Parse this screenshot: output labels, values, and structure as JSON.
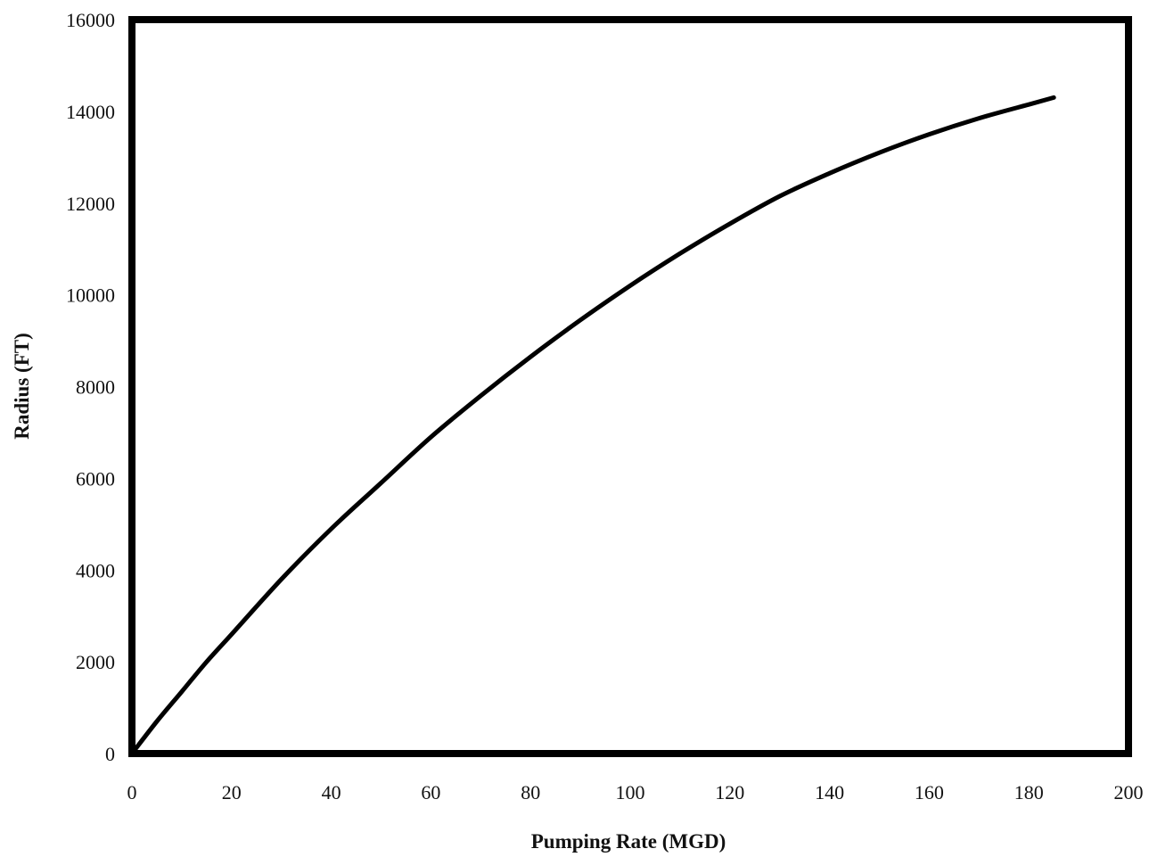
{
  "chart_data": {
    "type": "line",
    "title": "",
    "xlabel": "Pumping Rate (MGD)",
    "ylabel": "Radius (FT)",
    "xlim": [
      0,
      200
    ],
    "ylim": [
      0,
      16000
    ],
    "xticks": [
      "0",
      "20",
      "40",
      "60",
      "80",
      "100",
      "120",
      "140",
      "160",
      "180",
      "200"
    ],
    "yticks": [
      "0",
      "2000",
      "4000",
      "6000",
      "8000",
      "10000",
      "12000",
      "14000",
      "16000"
    ],
    "grid": false,
    "legend": "none",
    "line_color": "#000000",
    "series": [
      {
        "x": [
          0,
          5,
          10,
          15,
          20,
          30,
          40,
          50,
          60,
          70,
          80,
          90,
          100,
          110,
          120,
          130,
          140,
          150,
          160,
          170,
          180,
          185
        ],
        "y": [
          0,
          700,
          1350,
          2000,
          2600,
          3800,
          4900,
          5900,
          6900,
          7800,
          8650,
          9450,
          10200,
          10900,
          11550,
          12150,
          12650,
          13100,
          13500,
          13850,
          14150,
          14300
        ]
      }
    ]
  }
}
